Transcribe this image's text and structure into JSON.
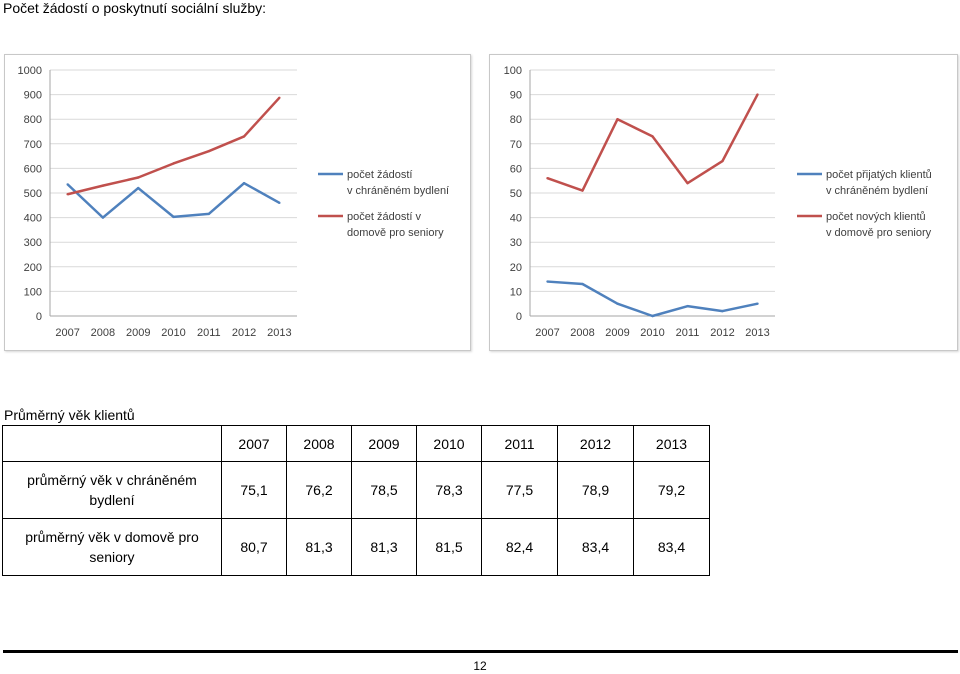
{
  "heading": "Počet žádostí o poskytnutí sociální služby:",
  "chart_data": [
    {
      "type": "line",
      "categories": [
        "2007",
        "2008",
        "2009",
        "2010",
        "2011",
        "2012",
        "2013"
      ],
      "ylim": [
        0,
        1000
      ],
      "yticks": [
        "0",
        "100",
        "200",
        "300",
        "400",
        "500",
        "600",
        "700",
        "800",
        "900",
        "1000"
      ],
      "grid": true,
      "legend_position": "right",
      "series": [
        {
          "name": "počet žádostí v chráněném bydlení",
          "legend": [
            "počet žádostí",
            "v chráněném bydlení"
          ],
          "color": "#4f81bd",
          "values": [
            535,
            400,
            520,
            403,
            415,
            540,
            460
          ]
        },
        {
          "name": "počet žádostí v domově pro seniory",
          "legend": [
            "počet žádostí v",
            "domově pro seniory"
          ],
          "color": "#c0504d",
          "values": [
            495,
            530,
            563,
            620,
            670,
            730,
            887
          ]
        }
      ]
    },
    {
      "type": "line",
      "categories": [
        "2007",
        "2008",
        "2009",
        "2010",
        "2011",
        "2012",
        "2013"
      ],
      "ylim": [
        0,
        100
      ],
      "yticks": [
        "0",
        "10",
        "20",
        "30",
        "40",
        "50",
        "60",
        "70",
        "80",
        "90",
        "100"
      ],
      "grid": true,
      "legend_position": "right",
      "series": [
        {
          "name": "počet přijatých klientů v chráněném bydlení",
          "legend": [
            "počet přijatých klientů",
            "v chráněném bydlení"
          ],
          "color": "#4f81bd",
          "values": [
            14,
            13,
            5,
            0,
            4,
            2,
            5
          ]
        },
        {
          "name": "počet nových klientů v domově pro seniory",
          "legend": [
            "počet nových klientů",
            "v domově pro seniory"
          ],
          "color": "#c0504d",
          "values": [
            56,
            51,
            80,
            73,
            54,
            63,
            90
          ]
        }
      ]
    }
  ],
  "ages_title": "Průměrný věk klientů",
  "ages_table": {
    "years": [
      "2007",
      "2008",
      "2009",
      "2010",
      "2011",
      "2012",
      "2013"
    ],
    "rows": [
      {
        "label": "průměrný věk v chráněném bydlení",
        "values": [
          "75,1",
          "76,2",
          "78,5",
          "78,3",
          "77,5",
          "78,9",
          "79,2"
        ]
      },
      {
        "label": "průměrný věk v domově pro seniory",
        "values": [
          "80,7",
          "81,3",
          "81,3",
          "81,5",
          "82,4",
          "83,4",
          "83,4"
        ]
      }
    ]
  },
  "page_number": "12"
}
